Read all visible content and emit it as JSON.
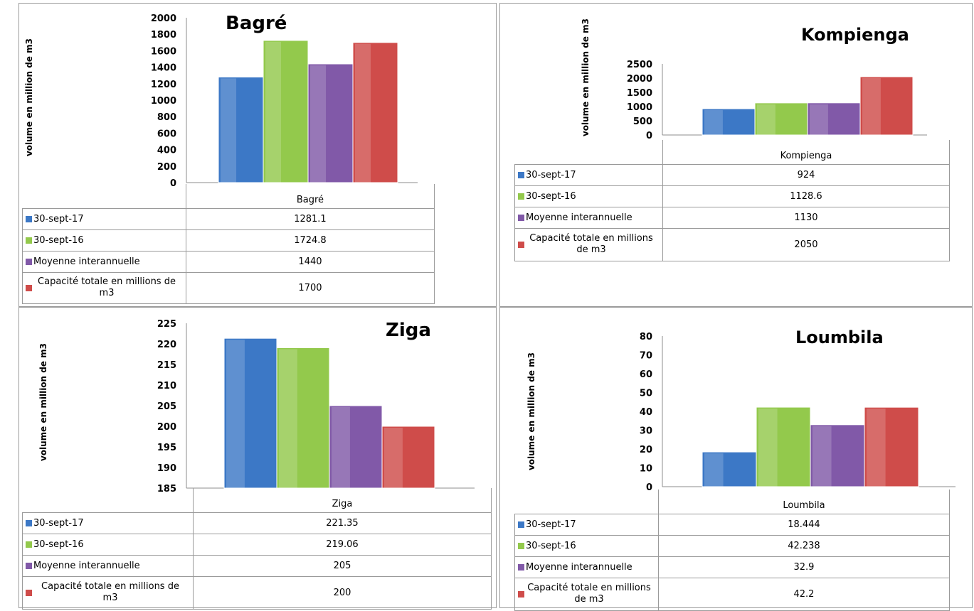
{
  "colors": {
    "blue": "#3c78c6",
    "green": "#93c94c",
    "purple": "#8159a8",
    "red": "#cf4c4a"
  },
  "series_labels": [
    "30-sept-17",
    "30-sept-16",
    "Moyenne interannuelle",
    "Capacité totale en millions de m3"
  ],
  "chart_data": [
    {
      "id": "bagre",
      "type": "bar",
      "title": "Bagré",
      "ylabel": "volume en million de m3",
      "categories": [
        "Bagré"
      ],
      "ylim": [
        0,
        2000
      ],
      "yticks": [
        "2000",
        "1800",
        "1600",
        "1400",
        "1200",
        "1000",
        "800",
        "600",
        "400",
        "200",
        "0"
      ],
      "series": [
        {
          "name": "30-sept-17",
          "values": [
            1281.1
          ],
          "display": "1281.1"
        },
        {
          "name": "30-sept-16",
          "values": [
            1724.8
          ],
          "display": "1724.8"
        },
        {
          "name": "Moyenne interannuelle",
          "values": [
            1440
          ],
          "display": "1440"
        },
        {
          "name": "Capacité totale en millions de m3",
          "values": [
            1700
          ],
          "display": "1700"
        }
      ],
      "table_labels": [
        "30-sept-17",
        "30-sept-16",
        "Moyenne interannuelle",
        "Capacité totale en millions de m3"
      ],
      "legend": "data-table"
    },
    {
      "id": "kompienga",
      "type": "bar",
      "title": "Kompienga",
      "ylabel": "volume en million de m3",
      "categories": [
        "Kompienga"
      ],
      "ylim": [
        0,
        2500
      ],
      "yticks": [
        "2500",
        "2000",
        "1500",
        "1000",
        "500",
        "0"
      ],
      "series": [
        {
          "name": "30-sept-17",
          "values": [
            924
          ],
          "display": "924"
        },
        {
          "name": "30-sept-16",
          "values": [
            1128.6
          ],
          "display": "1128.6"
        },
        {
          "name": "Moyenne interannuelle",
          "values": [
            1130
          ],
          "display": "1130"
        },
        {
          "name": "Capacité totale en millions de m3",
          "values": [
            2050
          ],
          "display": "2050"
        }
      ],
      "table_labels": [
        "30-sept-17",
        "30-sept-16",
        "Moyenne interannuelle",
        "Capacité totale en millions de m3"
      ],
      "legend": "data-table"
    },
    {
      "id": "ziga",
      "type": "bar",
      "title": "Ziga",
      "ylabel": "volume en million de m3",
      "categories": [
        "Ziga"
      ],
      "ylim": [
        185,
        225
      ],
      "yticks": [
        "225",
        "220",
        "215",
        "210",
        "205",
        "200",
        "195",
        "190",
        "185"
      ],
      "series": [
        {
          "name": "30-sept-17",
          "values": [
            221.35
          ],
          "display": "221.35"
        },
        {
          "name": "30-sept-16",
          "values": [
            219.06
          ],
          "display": "219.06"
        },
        {
          "name": "Moyenne interannuelle",
          "values": [
            205
          ],
          "display": "205"
        },
        {
          "name": "Capacité totale en millions de m3",
          "values": [
            200
          ],
          "display": "200"
        }
      ],
      "table_labels": [
        "30-sept-17",
        "30-sept-16",
        "Moyenne interannuelle",
        "Capacité totale en millions de m3"
      ],
      "legend": "data-table"
    },
    {
      "id": "loumbila",
      "type": "bar",
      "title": "Loumbila",
      "ylabel": "volume en million de m3",
      "categories": [
        "Loumbila"
      ],
      "ylim": [
        0,
        80
      ],
      "yticks": [
        "80",
        "70",
        "60",
        "50",
        "40",
        "30",
        "20",
        "10",
        "0"
      ],
      "series": [
        {
          "name": "30-sept-17",
          "values": [
            18.444
          ],
          "display": "18.444"
        },
        {
          "name": "30-sept-16",
          "values": [
            42.238
          ],
          "display": "42.238"
        },
        {
          "name": "Moyenne interannuelle",
          "values": [
            32.9
          ],
          "display": "32.9"
        },
        {
          "name": "Capacité totale en millions de m3",
          "values": [
            42.2
          ],
          "display": "42.2"
        }
      ],
      "table_labels": [
        "30-sept-17",
        "30-sept-16",
        "Moyenne interannuelle",
        "Capacité totale en millions de m3"
      ],
      "legend": "data-table"
    }
  ]
}
